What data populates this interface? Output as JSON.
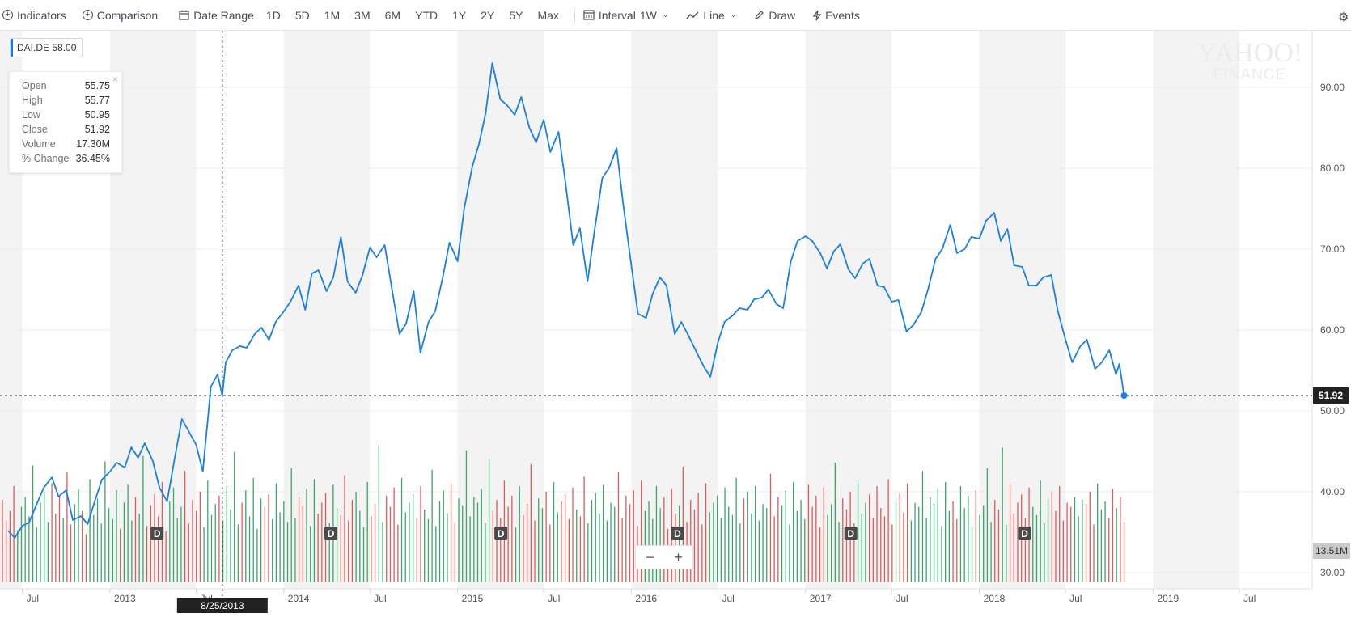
{
  "toolbar": {
    "indicators": "Indicators",
    "comparison": "Comparison",
    "date_range": "Date Range",
    "ranges": [
      "1D",
      "5D",
      "1M",
      "3M",
      "6M",
      "YTD",
      "1Y",
      "2Y",
      "5Y",
      "Max"
    ],
    "interval_label": "Interval",
    "interval_value": "1W",
    "line": "Line",
    "draw": "Draw",
    "events": "Events"
  },
  "symbol": {
    "ticker": "DAI.DE",
    "value": "58.00"
  },
  "ohlc": {
    "open_label": "Open",
    "open": "55.75",
    "high_label": "High",
    "high": "55.77",
    "low_label": "Low",
    "low": "50.95",
    "close_label": "Close",
    "close": "51.92",
    "volume_label": "Volume",
    "volume": "17.30M",
    "change_label": "% Change",
    "change": "36.45%"
  },
  "watermark": {
    "line1": "YAHOO!",
    "line2": "FINANCE"
  },
  "crosshair_date": "8/25/2013",
  "last_price_label": "51.92",
  "volume_label": "13.51M",
  "event_marker": "D",
  "zoom": {
    "minus": "−",
    "plus": "+"
  },
  "colors": {
    "line": "#1a7fe0",
    "vol_up": "#3aa66a",
    "vol_down": "#e05a5a",
    "band": "#f3f3f3",
    "grid": "#ececec"
  },
  "chart_data": {
    "type": "line",
    "interval": "1W",
    "ylim": [
      28,
      97
    ],
    "y_ticks": [
      30,
      40,
      50,
      60,
      70,
      80,
      90
    ],
    "x_ticks": [
      "Jul",
      "2013",
      "Jul",
      "2014",
      "Jul",
      "2015",
      "Jul",
      "2016",
      "Jul",
      "2017",
      "Jul",
      "2018",
      "Jul",
      "2019",
      "Jul"
    ],
    "series": [
      {
        "points": [
          [
            "2012-06-01",
            35.2
          ],
          [
            "2012-06-15",
            34.3
          ],
          [
            "2012-07-01",
            35.8
          ],
          [
            "2012-07-15",
            36.2
          ],
          [
            "2012-08-01",
            38.6
          ],
          [
            "2012-08-15",
            40.5
          ],
          [
            "2012-09-01",
            41.8
          ],
          [
            "2012-09-15",
            39.4
          ],
          [
            "2012-10-01",
            40.2
          ],
          [
            "2012-10-15",
            36.5
          ],
          [
            "2012-11-01",
            37.0
          ],
          [
            "2012-11-15",
            36.0
          ],
          [
            "2012-12-01",
            39.0
          ],
          [
            "2012-12-15",
            41.5
          ],
          [
            "2013-01-01",
            42.5
          ],
          [
            "2013-01-15",
            43.6
          ],
          [
            "2013-02-01",
            43.0
          ],
          [
            "2013-02-15",
            45.5
          ],
          [
            "2013-03-01",
            44.2
          ],
          [
            "2013-03-15",
            46.0
          ],
          [
            "2013-04-01",
            43.8
          ],
          [
            "2013-04-15",
            40.5
          ],
          [
            "2013-05-01",
            38.8
          ],
          [
            "2013-05-15",
            43.5
          ],
          [
            "2013-06-01",
            49.0
          ],
          [
            "2013-06-15",
            47.5
          ],
          [
            "2013-07-01",
            45.8
          ],
          [
            "2013-07-15",
            42.5
          ],
          [
            "2013-08-01",
            53.0
          ],
          [
            "2013-08-15",
            54.5
          ],
          [
            "2013-08-25",
            51.9
          ],
          [
            "2013-09-01",
            56.0
          ],
          [
            "2013-09-15",
            57.5
          ],
          [
            "2013-10-01",
            58.0
          ],
          [
            "2013-10-15",
            57.8
          ],
          [
            "2013-11-01",
            59.5
          ],
          [
            "2013-11-15",
            60.3
          ],
          [
            "2013-12-01",
            58.8
          ],
          [
            "2013-12-15",
            61.0
          ],
          [
            "2014-01-01",
            62.3
          ],
          [
            "2014-01-15",
            63.5
          ],
          [
            "2014-02-01",
            65.5
          ],
          [
            "2014-02-15",
            62.5
          ],
          [
            "2014-03-01",
            67.0
          ],
          [
            "2014-03-15",
            67.4
          ],
          [
            "2014-04-01",
            64.8
          ],
          [
            "2014-04-15",
            66.5
          ],
          [
            "2014-05-01",
            71.5
          ],
          [
            "2014-05-15",
            66.0
          ],
          [
            "2014-06-01",
            64.6
          ],
          [
            "2014-06-15",
            66.7
          ],
          [
            "2014-07-01",
            70.2
          ],
          [
            "2014-07-15",
            69.0
          ],
          [
            "2014-08-01",
            70.5
          ],
          [
            "2014-08-15",
            65.5
          ],
          [
            "2014-09-01",
            59.5
          ],
          [
            "2014-09-15",
            60.8
          ],
          [
            "2014-10-01",
            64.8
          ],
          [
            "2014-10-15",
            57.2
          ],
          [
            "2014-11-01",
            61.0
          ],
          [
            "2014-11-15",
            62.3
          ],
          [
            "2014-12-01",
            66.5
          ],
          [
            "2014-12-15",
            70.8
          ],
          [
            "2015-01-01",
            68.5
          ],
          [
            "2015-01-15",
            75.0
          ],
          [
            "2015-02-01",
            80.2
          ],
          [
            "2015-02-15",
            83.0
          ],
          [
            "2015-03-01",
            86.8
          ],
          [
            "2015-03-15",
            93.0
          ],
          [
            "2015-04-01",
            88.5
          ],
          [
            "2015-04-15",
            87.8
          ],
          [
            "2015-05-01",
            86.6
          ],
          [
            "2015-05-15",
            88.8
          ],
          [
            "2015-06-01",
            85.0
          ],
          [
            "2015-06-15",
            83.2
          ],
          [
            "2015-07-01",
            86.0
          ],
          [
            "2015-07-15",
            82.0
          ],
          [
            "2015-08-01",
            84.5
          ],
          [
            "2015-08-15",
            78.5
          ],
          [
            "2015-09-01",
            70.5
          ],
          [
            "2015-09-15",
            72.6
          ],
          [
            "2015-10-01",
            66.0
          ],
          [
            "2015-10-15",
            72.0
          ],
          [
            "2015-11-01",
            78.8
          ],
          [
            "2015-11-15",
            80.0
          ],
          [
            "2015-12-01",
            82.5
          ],
          [
            "2015-12-15",
            75.5
          ],
          [
            "2016-01-01",
            68.0
          ],
          [
            "2016-01-15",
            62.0
          ],
          [
            "2016-02-01",
            61.5
          ],
          [
            "2016-02-15",
            64.5
          ],
          [
            "2016-03-01",
            66.5
          ],
          [
            "2016-03-15",
            65.5
          ],
          [
            "2016-04-01",
            59.5
          ],
          [
            "2016-04-15",
            61.0
          ],
          [
            "2016-05-01",
            59.2
          ],
          [
            "2016-05-15",
            57.5
          ],
          [
            "2016-06-01",
            55.5
          ],
          [
            "2016-06-15",
            54.2
          ],
          [
            "2016-07-01",
            58.5
          ],
          [
            "2016-07-15",
            61.0
          ],
          [
            "2016-08-01",
            61.8
          ],
          [
            "2016-08-15",
            62.7
          ],
          [
            "2016-09-01",
            62.5
          ],
          [
            "2016-09-15",
            63.8
          ],
          [
            "2016-10-01",
            64.0
          ],
          [
            "2016-10-15",
            65.0
          ],
          [
            "2016-11-01",
            63.2
          ],
          [
            "2016-11-15",
            62.7
          ],
          [
            "2016-12-01",
            68.5
          ],
          [
            "2016-12-15",
            71.0
          ],
          [
            "2017-01-01",
            71.6
          ],
          [
            "2017-01-15",
            71.0
          ],
          [
            "2017-02-01",
            69.5
          ],
          [
            "2017-02-15",
            67.6
          ],
          [
            "2017-03-01",
            69.7
          ],
          [
            "2017-03-15",
            70.6
          ],
          [
            "2017-04-01",
            67.5
          ],
          [
            "2017-04-15",
            66.4
          ],
          [
            "2017-05-01",
            68.2
          ],
          [
            "2017-05-15",
            68.8
          ],
          [
            "2017-06-01",
            65.5
          ],
          [
            "2017-06-15",
            65.3
          ],
          [
            "2017-07-01",
            63.5
          ],
          [
            "2017-07-15",
            63.7
          ],
          [
            "2017-08-01",
            59.8
          ],
          [
            "2017-08-15",
            60.6
          ],
          [
            "2017-09-01",
            62.2
          ],
          [
            "2017-09-15",
            65.0
          ],
          [
            "2017-10-01",
            68.8
          ],
          [
            "2017-10-15",
            70.0
          ],
          [
            "2017-11-01",
            73.0
          ],
          [
            "2017-11-15",
            69.5
          ],
          [
            "2017-12-01",
            70.0
          ],
          [
            "2017-12-15",
            71.5
          ],
          [
            "2018-01-01",
            71.3
          ],
          [
            "2018-01-15",
            73.5
          ],
          [
            "2018-02-01",
            74.5
          ],
          [
            "2018-02-15",
            71.0
          ],
          [
            "2018-03-01",
            72.5
          ],
          [
            "2018-03-15",
            68.0
          ],
          [
            "2018-04-01",
            67.8
          ],
          [
            "2018-04-15",
            65.5
          ],
          [
            "2018-05-01",
            65.5
          ],
          [
            "2018-05-15",
            66.5
          ],
          [
            "2018-06-01",
            66.8
          ],
          [
            "2018-06-15",
            62.3
          ],
          [
            "2018-07-01",
            58.8
          ],
          [
            "2018-07-15",
            56.0
          ],
          [
            "2018-08-01",
            58.0
          ],
          [
            "2018-08-15",
            58.8
          ],
          [
            "2018-09-01",
            55.2
          ],
          [
            "2018-09-15",
            56.0
          ],
          [
            "2018-10-01",
            57.5
          ],
          [
            "2018-10-15",
            54.5
          ],
          [
            "2018-10-22",
            55.8
          ],
          [
            "2018-11-01",
            51.9
          ]
        ]
      }
    ],
    "volume": [
      0.6,
      0.45,
      0.52,
      0.7,
      0.38,
      0.55,
      0.62,
      0.48,
      0.85,
      0.4,
      0.58,
      0.66,
      0.44,
      0.72,
      0.5,
      0.63,
      0.47,
      0.8,
      0.42,
      0.57,
      0.68,
      0.52,
      0.35,
      0.75,
      0.49,
      0.61,
      0.43,
      0.88,
      0.54,
      0.46,
      0.67,
      0.39,
      0.58,
      0.71,
      0.45,
      0.62,
      0.5,
      0.92,
      0.41,
      0.56,
      0.64,
      0.48,
      0.73,
      0.37,
      0.59,
      0.69,
      0.47,
      0.55,
      0.81,
      0.43,
      0.6,
      0.52,
      0.66,
      0.4,
      0.74,
      0.49,
      0.57,
      0.63,
      0.45,
      0.7,
      0.53,
      0.95,
      0.42,
      0.58,
      0.67,
      0.48,
      0.76,
      0.39,
      0.61,
      0.55,
      0.64,
      0.46,
      0.72,
      0.51,
      0.59,
      0.44,
      0.83,
      0.47,
      0.62,
      0.56,
      0.68,
      0.41,
      0.75,
      0.5,
      0.58,
      0.65,
      0.43,
      0.71,
      0.54,
      0.49,
      0.78,
      0.45,
      0.6,
      0.66,
      0.52,
      0.4,
      0.73,
      0.48,
      0.57,
      1.0,
      0.44,
      0.63,
      0.55,
      0.69,
      0.42,
      0.76,
      0.51,
      0.58,
      0.64,
      0.47,
      0.7,
      0.53,
      0.46,
      0.82,
      0.41,
      0.59,
      0.67,
      0.5,
      0.72,
      0.44,
      0.61,
      0.56,
      0.96,
      0.48,
      0.62,
      0.58,
      0.68,
      0.43,
      0.9,
      0.52,
      0.6,
      0.47,
      0.74,
      0.55,
      0.63,
      0.4,
      0.7,
      0.49,
      0.57,
      0.86,
      0.45,
      0.61,
      0.54,
      0.66,
      0.42,
      0.73,
      0.51,
      0.59,
      0.64,
      0.46,
      0.69,
      0.53,
      0.48,
      0.77,
      0.43,
      0.6,
      0.65,
      0.5,
      0.71,
      0.45,
      0.58,
      0.55,
      0.8,
      0.47,
      0.63,
      0.57,
      0.67,
      0.41,
      0.74,
      0.52,
      0.59,
      0.46,
      0.7,
      0.54,
      0.62,
      0.39,
      0.68,
      0.5,
      0.56,
      0.84,
      0.44,
      0.6,
      0.53,
      0.65,
      0.42,
      0.72,
      0.51,
      0.58,
      0.63,
      0.47,
      0.69,
      0.55,
      0.49,
      0.76,
      0.43,
      0.61,
      0.66,
      0.5,
      0.7,
      0.45,
      0.57,
      0.54,
      0.79,
      0.48,
      0.62,
      0.56,
      0.67,
      0.42,
      0.73,
      0.52,
      0.6,
      0.46,
      0.71,
      0.55,
      0.63,
      0.4,
      0.69,
      0.49,
      0.57,
      0.87,
      0.44,
      0.61,
      0.53,
      0.66,
      0.43,
      0.74,
      0.5,
      0.58,
      0.64,
      0.47,
      0.7,
      0.54,
      0.48,
      0.75,
      0.42,
      0.6,
      0.65,
      0.51,
      0.72,
      0.45,
      0.58,
      0.55,
      0.81,
      0.47,
      0.62,
      0.57,
      0.68,
      0.41,
      0.73,
      0.52,
      0.59,
      0.46,
      0.7,
      0.54,
      0.63,
      0.4,
      0.67,
      0.49,
      0.56,
      0.83,
      0.44,
      0.6,
      0.53,
      0.98,
      0.42,
      0.71,
      0.5,
      0.58,
      0.64,
      0.47,
      0.69,
      0.55,
      0.49,
      0.74,
      0.43,
      0.61,
      0.66,
      0.52,
      0.7,
      0.45,
      0.58,
      0.55,
      0.62,
      0.48,
      0.6,
      0.57,
      0.66,
      0.42,
      0.72,
      0.53,
      0.59,
      0.47,
      0.68,
      0.54,
      0.62,
      0.44
    ],
    "dividend_dates": [
      "2013-04-10",
      "2014-04-10",
      "2015-04-02",
      "2016-04-07",
      "2017-04-06",
      "2018-04-06"
    ]
  }
}
